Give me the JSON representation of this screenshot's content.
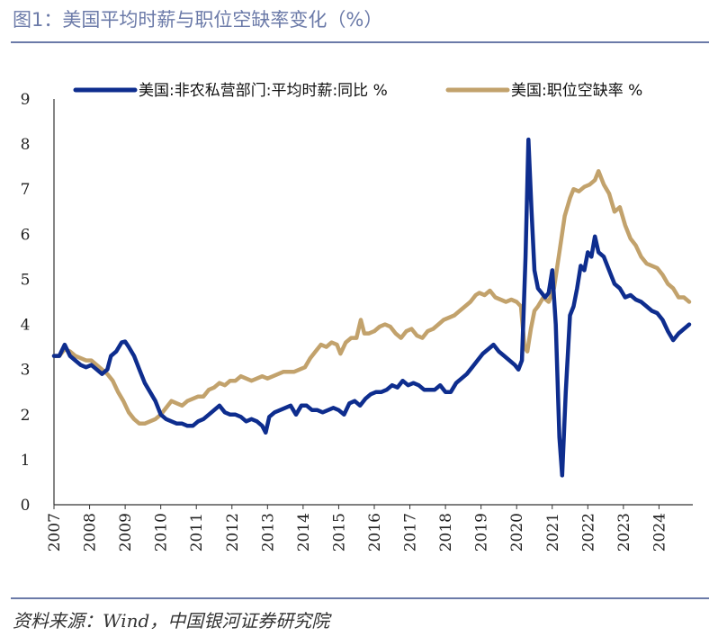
{
  "figure": {
    "title": "图1：美国平均时薪与职位空缺率变化（%）",
    "source": "资料来源：Wind，中国银河证券研究院"
  },
  "chart_data": {
    "type": "line",
    "title": "图1：美国平均时薪与职位空缺率变化（%）",
    "xlabel": "",
    "ylabel": "",
    "ylim": [
      0,
      9
    ],
    "xlim": [
      2007.0,
      2024.95
    ],
    "yticks": [
      "0",
      "1",
      "2",
      "3",
      "4",
      "5",
      "6",
      "7",
      "8",
      "9"
    ],
    "xticks": [
      "2007",
      "2008",
      "2009",
      "2010",
      "2011",
      "2012",
      "2013",
      "2014",
      "2015",
      "2016",
      "2017",
      "2018",
      "2019",
      "2020",
      "2021",
      "2022",
      "2023",
      "2024"
    ],
    "legend_position": "top",
    "series": [
      {
        "name": "美国:非农私营部门:平均时薪:同比 %",
        "color": "#0e2d8e",
        "points": [
          [
            2007.0,
            3.3
          ],
          [
            2007.15,
            3.3
          ],
          [
            2007.3,
            3.55
          ],
          [
            2007.45,
            3.3
          ],
          [
            2007.6,
            3.2
          ],
          [
            2007.75,
            3.1
          ],
          [
            2007.9,
            3.05
          ],
          [
            2008.05,
            3.1
          ],
          [
            2008.2,
            3.0
          ],
          [
            2008.35,
            2.9
          ],
          [
            2008.5,
            3.0
          ],
          [
            2008.6,
            3.3
          ],
          [
            2008.75,
            3.4
          ],
          [
            2008.9,
            3.6
          ],
          [
            2009.0,
            3.62
          ],
          [
            2009.1,
            3.5
          ],
          [
            2009.25,
            3.3
          ],
          [
            2009.4,
            3.0
          ],
          [
            2009.55,
            2.7
          ],
          [
            2009.7,
            2.5
          ],
          [
            2009.85,
            2.3
          ],
          [
            2010.0,
            2.0
          ],
          [
            2010.15,
            1.9
          ],
          [
            2010.3,
            1.85
          ],
          [
            2010.45,
            1.8
          ],
          [
            2010.6,
            1.8
          ],
          [
            2010.75,
            1.75
          ],
          [
            2010.9,
            1.75
          ],
          [
            2011.05,
            1.85
          ],
          [
            2011.2,
            1.9
          ],
          [
            2011.35,
            2.0
          ],
          [
            2011.5,
            2.1
          ],
          [
            2011.65,
            2.2
          ],
          [
            2011.8,
            2.05
          ],
          [
            2011.95,
            2.0
          ],
          [
            2012.1,
            2.0
          ],
          [
            2012.25,
            1.95
          ],
          [
            2012.4,
            1.85
          ],
          [
            2012.55,
            1.9
          ],
          [
            2012.7,
            1.85
          ],
          [
            2012.85,
            1.75
          ],
          [
            2012.95,
            1.6
          ],
          [
            2013.05,
            1.95
          ],
          [
            2013.2,
            2.05
          ],
          [
            2013.35,
            2.1
          ],
          [
            2013.5,
            2.15
          ],
          [
            2013.65,
            2.2
          ],
          [
            2013.8,
            2.0
          ],
          [
            2013.95,
            2.2
          ],
          [
            2014.1,
            2.2
          ],
          [
            2014.25,
            2.1
          ],
          [
            2014.4,
            2.1
          ],
          [
            2014.55,
            2.05
          ],
          [
            2014.7,
            2.1
          ],
          [
            2014.85,
            2.15
          ],
          [
            2015.0,
            2.1
          ],
          [
            2015.15,
            2.0
          ],
          [
            2015.3,
            2.25
          ],
          [
            2015.45,
            2.3
          ],
          [
            2015.6,
            2.2
          ],
          [
            2015.75,
            2.35
          ],
          [
            2015.9,
            2.45
          ],
          [
            2016.05,
            2.5
          ],
          [
            2016.2,
            2.5
          ],
          [
            2016.35,
            2.55
          ],
          [
            2016.5,
            2.65
          ],
          [
            2016.65,
            2.6
          ],
          [
            2016.8,
            2.75
          ],
          [
            2016.95,
            2.65
          ],
          [
            2017.1,
            2.7
          ],
          [
            2017.25,
            2.65
          ],
          [
            2017.4,
            2.55
          ],
          [
            2017.55,
            2.55
          ],
          [
            2017.7,
            2.55
          ],
          [
            2017.85,
            2.65
          ],
          [
            2018.0,
            2.5
          ],
          [
            2018.15,
            2.5
          ],
          [
            2018.3,
            2.7
          ],
          [
            2018.45,
            2.8
          ],
          [
            2018.6,
            2.9
          ],
          [
            2018.75,
            3.05
          ],
          [
            2018.9,
            3.2
          ],
          [
            2019.05,
            3.35
          ],
          [
            2019.2,
            3.45
          ],
          [
            2019.35,
            3.55
          ],
          [
            2019.5,
            3.4
          ],
          [
            2019.65,
            3.3
          ],
          [
            2019.8,
            3.2
          ],
          [
            2019.95,
            3.1
          ],
          [
            2020.05,
            3.0
          ],
          [
            2020.15,
            3.2
          ],
          [
            2020.25,
            5.5
          ],
          [
            2020.33,
            8.1
          ],
          [
            2020.42,
            6.5
          ],
          [
            2020.5,
            5.2
          ],
          [
            2020.6,
            4.8
          ],
          [
            2020.7,
            4.7
          ],
          [
            2020.8,
            4.6
          ],
          [
            2020.9,
            4.7
          ],
          [
            2021.0,
            5.2
          ],
          [
            2021.1,
            4.0
          ],
          [
            2021.2,
            1.5
          ],
          [
            2021.28,
            0.65
          ],
          [
            2021.38,
            2.5
          ],
          [
            2021.5,
            4.2
          ],
          [
            2021.6,
            4.4
          ],
          [
            2021.7,
            4.8
          ],
          [
            2021.8,
            5.3
          ],
          [
            2021.9,
            5.2
          ],
          [
            2022.0,
            5.6
          ],
          [
            2022.1,
            5.5
          ],
          [
            2022.2,
            5.95
          ],
          [
            2022.3,
            5.6
          ],
          [
            2022.45,
            5.5
          ],
          [
            2022.6,
            5.2
          ],
          [
            2022.75,
            4.9
          ],
          [
            2022.9,
            4.8
          ],
          [
            2023.05,
            4.6
          ],
          [
            2023.2,
            4.65
          ],
          [
            2023.35,
            4.55
          ],
          [
            2023.5,
            4.5
          ],
          [
            2023.65,
            4.4
          ],
          [
            2023.8,
            4.3
          ],
          [
            2023.95,
            4.25
          ],
          [
            2024.1,
            4.1
          ],
          [
            2024.25,
            3.85
          ],
          [
            2024.4,
            3.65
          ],
          [
            2024.55,
            3.8
          ],
          [
            2024.7,
            3.9
          ],
          [
            2024.85,
            4.0
          ]
        ]
      },
      {
        "name": "美国:职位空缺率 %",
        "color": "#c2a26c",
        "points": [
          [
            2007.0,
            3.3
          ],
          [
            2007.15,
            3.3
          ],
          [
            2007.3,
            3.45
          ],
          [
            2007.45,
            3.4
          ],
          [
            2007.6,
            3.3
          ],
          [
            2007.75,
            3.25
          ],
          [
            2007.9,
            3.2
          ],
          [
            2008.05,
            3.2
          ],
          [
            2008.2,
            3.1
          ],
          [
            2008.35,
            3.0
          ],
          [
            2008.5,
            2.9
          ],
          [
            2008.65,
            2.75
          ],
          [
            2008.8,
            2.5
          ],
          [
            2008.95,
            2.3
          ],
          [
            2009.1,
            2.05
          ],
          [
            2009.25,
            1.9
          ],
          [
            2009.4,
            1.8
          ],
          [
            2009.55,
            1.8
          ],
          [
            2009.7,
            1.85
          ],
          [
            2009.85,
            1.9
          ],
          [
            2010.0,
            2.0
          ],
          [
            2010.15,
            2.15
          ],
          [
            2010.3,
            2.3
          ],
          [
            2010.45,
            2.25
          ],
          [
            2010.6,
            2.2
          ],
          [
            2010.75,
            2.3
          ],
          [
            2010.9,
            2.35
          ],
          [
            2011.05,
            2.4
          ],
          [
            2011.2,
            2.4
          ],
          [
            2011.35,
            2.55
          ],
          [
            2011.5,
            2.6
          ],
          [
            2011.65,
            2.7
          ],
          [
            2011.8,
            2.65
          ],
          [
            2011.95,
            2.75
          ],
          [
            2012.1,
            2.75
          ],
          [
            2012.25,
            2.85
          ],
          [
            2012.4,
            2.8
          ],
          [
            2012.55,
            2.75
          ],
          [
            2012.7,
            2.8
          ],
          [
            2012.85,
            2.85
          ],
          [
            2013.0,
            2.8
          ],
          [
            2013.15,
            2.85
          ],
          [
            2013.3,
            2.9
          ],
          [
            2013.45,
            2.95
          ],
          [
            2013.6,
            2.95
          ],
          [
            2013.75,
            2.95
          ],
          [
            2013.9,
            3.0
          ],
          [
            2014.05,
            3.05
          ],
          [
            2014.2,
            3.25
          ],
          [
            2014.35,
            3.4
          ],
          [
            2014.5,
            3.55
          ],
          [
            2014.65,
            3.5
          ],
          [
            2014.8,
            3.6
          ],
          [
            2014.95,
            3.55
          ],
          [
            2015.05,
            3.35
          ],
          [
            2015.2,
            3.6
          ],
          [
            2015.35,
            3.7
          ],
          [
            2015.5,
            3.7
          ],
          [
            2015.62,
            4.1
          ],
          [
            2015.72,
            3.8
          ],
          [
            2015.85,
            3.8
          ],
          [
            2016.0,
            3.85
          ],
          [
            2016.15,
            3.95
          ],
          [
            2016.3,
            4.0
          ],
          [
            2016.45,
            3.95
          ],
          [
            2016.6,
            3.8
          ],
          [
            2016.75,
            3.7
          ],
          [
            2016.9,
            3.85
          ],
          [
            2017.05,
            3.9
          ],
          [
            2017.2,
            3.75
          ],
          [
            2017.35,
            3.7
          ],
          [
            2017.5,
            3.85
          ],
          [
            2017.65,
            3.9
          ],
          [
            2017.8,
            4.0
          ],
          [
            2017.95,
            4.1
          ],
          [
            2018.1,
            4.15
          ],
          [
            2018.25,
            4.2
          ],
          [
            2018.4,
            4.3
          ],
          [
            2018.55,
            4.4
          ],
          [
            2018.7,
            4.5
          ],
          [
            2018.85,
            4.65
          ],
          [
            2018.95,
            4.7
          ],
          [
            2019.1,
            4.65
          ],
          [
            2019.25,
            4.75
          ],
          [
            2019.4,
            4.6
          ],
          [
            2019.55,
            4.55
          ],
          [
            2019.7,
            4.5
          ],
          [
            2019.85,
            4.55
          ],
          [
            2020.0,
            4.5
          ],
          [
            2020.12,
            4.4
          ],
          [
            2020.22,
            3.5
          ],
          [
            2020.3,
            3.4
          ],
          [
            2020.4,
            3.9
          ],
          [
            2020.5,
            4.3
          ],
          [
            2020.6,
            4.4
          ],
          [
            2020.75,
            4.6
          ],
          [
            2020.9,
            4.5
          ],
          [
            2021.05,
            4.8
          ],
          [
            2021.2,
            5.6
          ],
          [
            2021.35,
            6.4
          ],
          [
            2021.5,
            6.8
          ],
          [
            2021.6,
            7.0
          ],
          [
            2021.75,
            6.95
          ],
          [
            2021.9,
            7.05
          ],
          [
            2022.05,
            7.1
          ],
          [
            2022.2,
            7.2
          ],
          [
            2022.3,
            7.4
          ],
          [
            2022.45,
            7.1
          ],
          [
            2022.6,
            6.9
          ],
          [
            2022.75,
            6.5
          ],
          [
            2022.9,
            6.6
          ],
          [
            2023.05,
            6.2
          ],
          [
            2023.2,
            5.9
          ],
          [
            2023.35,
            5.75
          ],
          [
            2023.5,
            5.5
          ],
          [
            2023.65,
            5.35
          ],
          [
            2023.8,
            5.3
          ],
          [
            2023.95,
            5.25
          ],
          [
            2024.1,
            5.1
          ],
          [
            2024.25,
            4.9
          ],
          [
            2024.4,
            4.8
          ],
          [
            2024.55,
            4.6
          ],
          [
            2024.7,
            4.6
          ],
          [
            2024.85,
            4.5
          ]
        ]
      }
    ]
  }
}
